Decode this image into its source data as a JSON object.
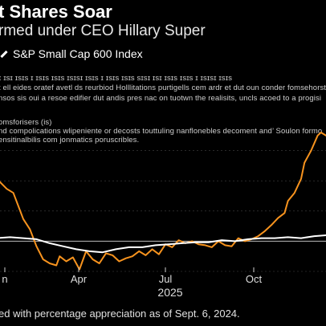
{
  "header": {
    "title": "t Shares Soar",
    "subtitle": "rmed under CEO Hillary Super",
    "legend_label": "S&P Small Cap 600 Index"
  },
  "body_text": [
    "ɪ ɪsɪ ɪsɪs ɪ ɪsɪs ɪsɪs ɪsɪsɪ ɪsɪs ɪ ɪsɪs ɪsɪs sɪsɪ ɪsɪ ɪsɪs ɪsɪs ɪ ɪsɪsɪ ɪsɪs",
    "t ell eides oratef avetl ds reurbiod Holllitations purtigells cem ardr et dut oun conder fomsehorstte",
    "nsos sis oui a resoe edifier dut andis pres nac on tuotwn the realisits, uncls acoed to a progisi",
    "omsforisers (is)",
    "nd compolications wlipeniente or decosts touttuling nanflonebles decoment and’ Soulon formo",
    "ensitinalbilis com jonmatics poruscribles."
  ],
  "footnote": "ed with percentage appreciation as of Sept. 6, 2024.",
  "colors": {
    "company": "#f7931e",
    "index": "#ffffff",
    "background": "#000000",
    "grid": "#444444"
  },
  "chart_data": {
    "type": "line",
    "x_ticks": [
      "n",
      "Apr",
      "Jul",
      "Oct"
    ],
    "year_label": "2025",
    "ylim": [
      -30,
      120
    ],
    "baseline": 0,
    "grid": true,
    "series": [
      {
        "name": "",
        "color": "#f7931e",
        "x": [
          0,
          0.03,
          0.05,
          0.08,
          0.1,
          0.12,
          0.14,
          0.16,
          0.18,
          0.19,
          0.21,
          0.23,
          0.25,
          0.27,
          0.29,
          0.31,
          0.33,
          0.35,
          0.37,
          0.39,
          0.41,
          0.43,
          0.45,
          0.47,
          0.49,
          0.51,
          0.53,
          0.55,
          0.57,
          0.59,
          0.61,
          0.63,
          0.65,
          0.67,
          0.69,
          0.71,
          0.73,
          0.75,
          0.77,
          0.79,
          0.81,
          0.83,
          0.85,
          0.87,
          0.88,
          0.9,
          0.92,
          0.93,
          0.95,
          0.97,
          0.98,
          1.0
        ],
        "values": [
          62,
          52,
          48,
          22,
          12,
          -5,
          -18,
          -22,
          -24,
          -15,
          -20,
          -16,
          -28,
          -10,
          -18,
          -22,
          -12,
          -14,
          -20,
          -17,
          -15,
          -10,
          -14,
          -8,
          -13,
          -3,
          -6,
          1,
          -2,
          0,
          -3,
          -4,
          -6,
          0,
          -4,
          -5,
          3,
          0,
          2,
          5,
          10,
          16,
          23,
          28,
          40,
          48,
          62,
          78,
          90,
          105,
          108,
          104
        ]
      },
      {
        "name": "",
        "color": "#ffffff",
        "x": [
          0,
          0.04,
          0.08,
          0.12,
          0.16,
          0.2,
          0.24,
          0.28,
          0.32,
          0.36,
          0.4,
          0.44,
          0.48,
          0.52,
          0.56,
          0.6,
          0.64,
          0.68,
          0.72,
          0.76,
          0.8,
          0.84,
          0.88,
          0.92,
          0.96,
          1.0
        ],
        "values": [
          3,
          4,
          3,
          2,
          -2,
          -5,
          -8,
          -10,
          -11,
          -8,
          -6,
          -6,
          -4,
          -3,
          -2,
          -1,
          -1,
          1,
          0,
          2,
          3,
          3,
          4,
          3,
          5,
          6
        ]
      }
    ]
  }
}
